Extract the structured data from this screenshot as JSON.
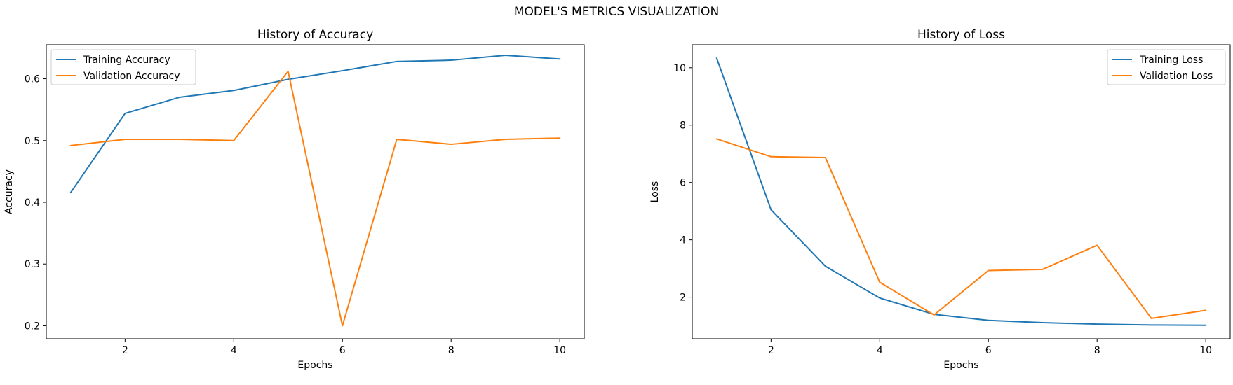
{
  "figure": {
    "suptitle": "MODEL'S METRICS VISUALIZATION"
  },
  "chart_data": [
    {
      "type": "line",
      "title": "History of Accuracy",
      "xlabel": "Epochs",
      "ylabel": "Accuracy",
      "x": [
        1,
        2,
        3,
        4,
        5,
        6,
        7,
        8,
        9,
        10
      ],
      "xlim": [
        0.55,
        10.45
      ],
      "ylim": [
        0.179,
        0.655
      ],
      "xticks": [
        2,
        4,
        6,
        8,
        10
      ],
      "yticks": [
        0.2,
        0.3,
        0.4,
        0.5,
        0.6
      ],
      "ytick_decimals": 1,
      "grid": false,
      "legend_position": "top-left",
      "series": [
        {
          "name": "Training Accuracy",
          "color": "#1f77b4",
          "values": [
            0.416,
            0.544,
            0.57,
            0.581,
            0.599,
            0.613,
            0.628,
            0.63,
            0.638,
            0.632
          ]
        },
        {
          "name": "Validation Accuracy",
          "color": "#ff7f0e",
          "values": [
            0.492,
            0.502,
            0.502,
            0.5,
            0.612,
            0.2,
            0.502,
            0.494,
            0.502,
            0.504
          ]
        }
      ]
    },
    {
      "type": "line",
      "title": "History of Loss",
      "xlabel": "Epochs",
      "ylabel": "Loss",
      "x": [
        1,
        2,
        3,
        4,
        5,
        6,
        7,
        8,
        9,
        10
      ],
      "xlim": [
        0.55,
        10.45
      ],
      "ylim": [
        0.55,
        10.8
      ],
      "xticks": [
        2,
        4,
        6,
        8,
        10
      ],
      "yticks": [
        2,
        4,
        6,
        8,
        10
      ],
      "ytick_decimals": 0,
      "grid": false,
      "legend_position": "top-right",
      "series": [
        {
          "name": "Training Loss",
          "color": "#1f77b4",
          "values": [
            10.33,
            5.05,
            3.08,
            1.97,
            1.4,
            1.19,
            1.11,
            1.06,
            1.03,
            1.02
          ]
        },
        {
          "name": "Validation Loss",
          "color": "#ff7f0e",
          "values": [
            7.52,
            6.9,
            6.87,
            2.52,
            1.38,
            2.93,
            2.97,
            3.81,
            1.26,
            1.54
          ]
        }
      ]
    }
  ]
}
